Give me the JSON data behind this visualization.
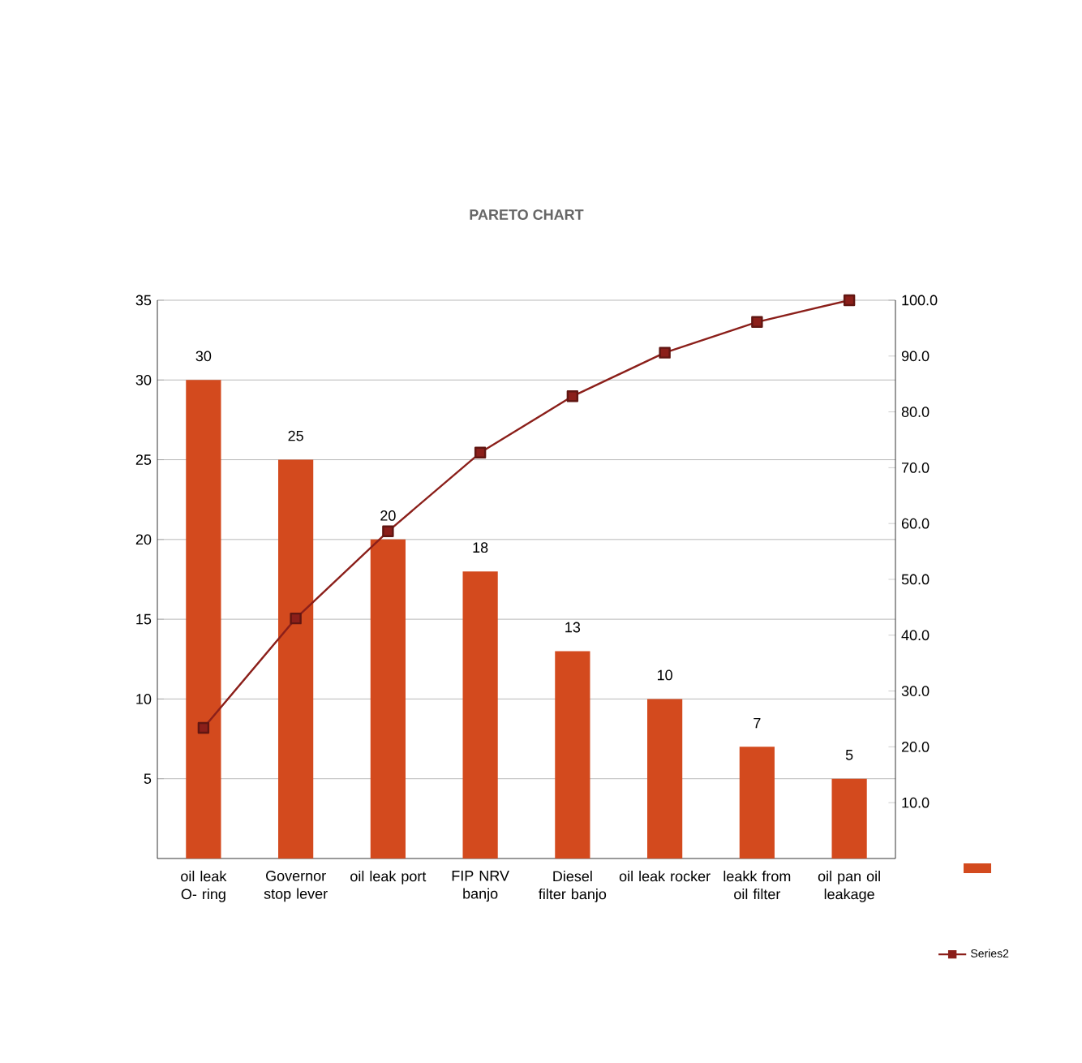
{
  "chart_data": {
    "type": "bar",
    "title": "PARETO CHART",
    "categories": [
      "oil leak O- ring",
      "Governor stop lever",
      "oil leak port",
      "FIP NRV banjo",
      "Diesel filter banjo",
      "oil leak rocker",
      "leakk from oil filter",
      "oil pan oil leakage"
    ],
    "series": [
      {
        "color": "#d34a1e",
        "values": [
          30,
          25,
          20,
          18,
          13,
          10,
          7,
          5
        ],
        "value_labels": [
          "30",
          "25",
          "20",
          "18",
          "13",
          "10",
          "7",
          "5"
        ]
      },
      {
        "type": "line",
        "name": "Series2",
        "axis": "y2",
        "color": "#8b1f1a",
        "values": [
          23.4,
          43.0,
          58.6,
          72.7,
          82.8,
          90.6,
          96.1,
          100
        ]
      }
    ],
    "ylim": [
      0,
      35
    ],
    "yticks": [
      5,
      10,
      15,
      20,
      25,
      30,
      35
    ],
    "y2lim": [
      0,
      100
    ],
    "y2ticks": [
      {
        "value": 10,
        "label": "10.0"
      },
      {
        "value": 20,
        "label": "20.0"
      },
      {
        "value": 30,
        "label": "30.0"
      },
      {
        "value": 40,
        "label": "40.0"
      },
      {
        "value": 50,
        "label": "50.0"
      },
      {
        "value": 60,
        "label": "60.0"
      },
      {
        "value": 70,
        "label": "70.0"
      },
      {
        "value": 80,
        "label": "80.0"
      },
      {
        "value": 90,
        "label": "90.0"
      },
      {
        "value": 100,
        "label": "100.0"
      }
    ],
    "grid": "y",
    "legend": "right",
    "marker": "square",
    "line_style": "solid"
  }
}
